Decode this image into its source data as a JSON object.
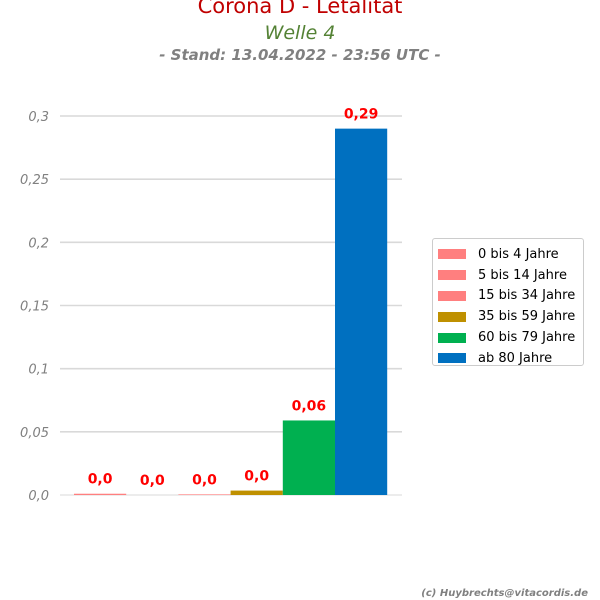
{
  "header": {
    "title": "Corona D - Letalität",
    "subtitle": "Welle 4",
    "stand": "- Stand: 13.04.2022 - 23:56 UTC -"
  },
  "footer": {
    "copyright": "(c) Huybrechts@vitacordis.de"
  },
  "colors": {
    "title": "#c00000",
    "subtitle": "#548235",
    "stand": "#808080",
    "value_label": "#ff0000",
    "grid": "#d9d9d9",
    "tick_label": "#808080"
  },
  "chart_data": {
    "type": "bar",
    "title": "Corona D - Letalität",
    "subtitle": "Welle 4",
    "xlabel": "",
    "ylabel": "",
    "ylim": [
      0,
      0.3
    ],
    "yticks": [
      0,
      0.05,
      0.1,
      0.15,
      0.2,
      0.25,
      0.3
    ],
    "ytick_labels": [
      "0,0",
      "0,05",
      "0,1",
      "0,15",
      "0,2",
      "0,25",
      "0,3"
    ],
    "grid": true,
    "legend_position": "right",
    "series": [
      {
        "name": "0 bis 4 Jahre",
        "value": 0.001,
        "label": "0,0",
        "color": "#ff7f7f"
      },
      {
        "name": "5 bis 14 Jahre",
        "value": 0.0,
        "label": "0,0",
        "color": "#ff7f7f"
      },
      {
        "name": "15 bis 34 Jahre",
        "value": 0.0005,
        "label": "0,0",
        "color": "#ff7f7f"
      },
      {
        "name": "35 bis 59 Jahre",
        "value": 0.0035,
        "label": "0,0",
        "color": "#bf9000"
      },
      {
        "name": "60 bis 79 Jahre",
        "value": 0.059,
        "label": "0,06",
        "color": "#00b050"
      },
      {
        "name": "ab 80 Jahre",
        "value": 0.29,
        "label": "0,29",
        "color": "#0070c0"
      }
    ]
  }
}
